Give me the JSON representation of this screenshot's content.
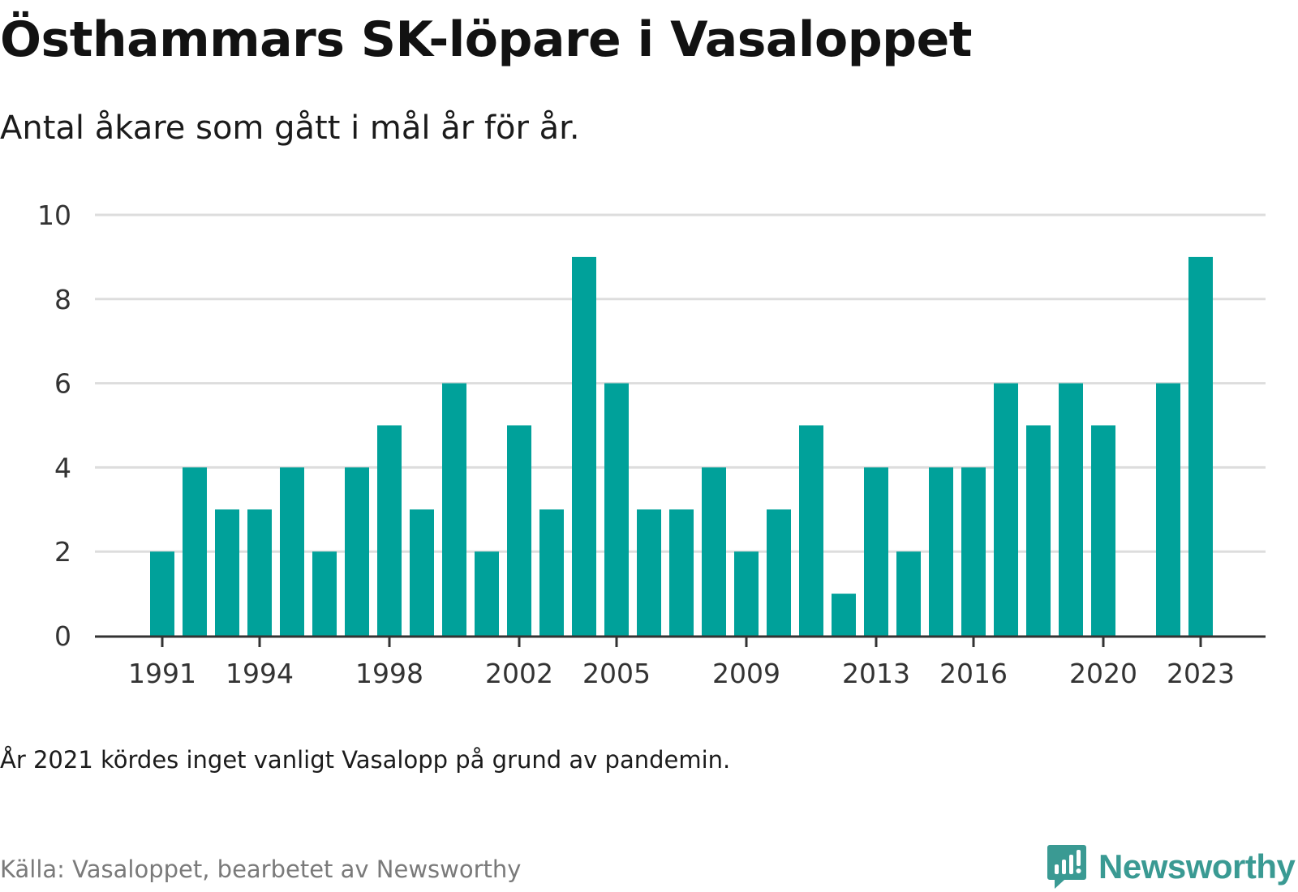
{
  "header": {
    "title": "Östhammars SK-löpare i Vasaloppet",
    "subtitle": "Antal åkare som gått i mål år för år."
  },
  "footer": {
    "note": "År 2021 kördes inget vanligt Vasalopp på grund av pandemin.",
    "source": "Källa: Vasaloppet, bearbetet av Newsworthy",
    "brand": "Newsworthy",
    "brand_icon": "newsworthy-logo-icon"
  },
  "colors": {
    "bar": "#00a19a",
    "grid": "#dddddd",
    "axis": "#333333",
    "brand": "#3a9a93"
  },
  "chart_data": {
    "type": "bar",
    "title": "Östhammars SK-löpare i Vasaloppet",
    "subtitle": "Antal åkare som gått i mål år för år.",
    "xlabel": "",
    "ylabel": "",
    "ylim": [
      0,
      10
    ],
    "yticks": [
      0,
      2,
      4,
      6,
      8,
      10
    ],
    "xticks": [
      1991,
      1994,
      1998,
      2002,
      2005,
      2009,
      2013,
      2016,
      2020,
      2023
    ],
    "grid": true,
    "categories": [
      1991,
      1992,
      1993,
      1994,
      1995,
      1996,
      1997,
      1998,
      1999,
      2000,
      2001,
      2002,
      2003,
      2004,
      2005,
      2006,
      2007,
      2008,
      2009,
      2010,
      2011,
      2012,
      2013,
      2014,
      2015,
      2016,
      2017,
      2018,
      2019,
      2020,
      2021,
      2022,
      2023
    ],
    "values": [
      2,
      4,
      3,
      3,
      4,
      2,
      4,
      5,
      3,
      6,
      2,
      5,
      3,
      9,
      6,
      3,
      3,
      4,
      2,
      3,
      5,
      1,
      4,
      2,
      4,
      4,
      6,
      5,
      6,
      5,
      null,
      6,
      9
    ]
  }
}
